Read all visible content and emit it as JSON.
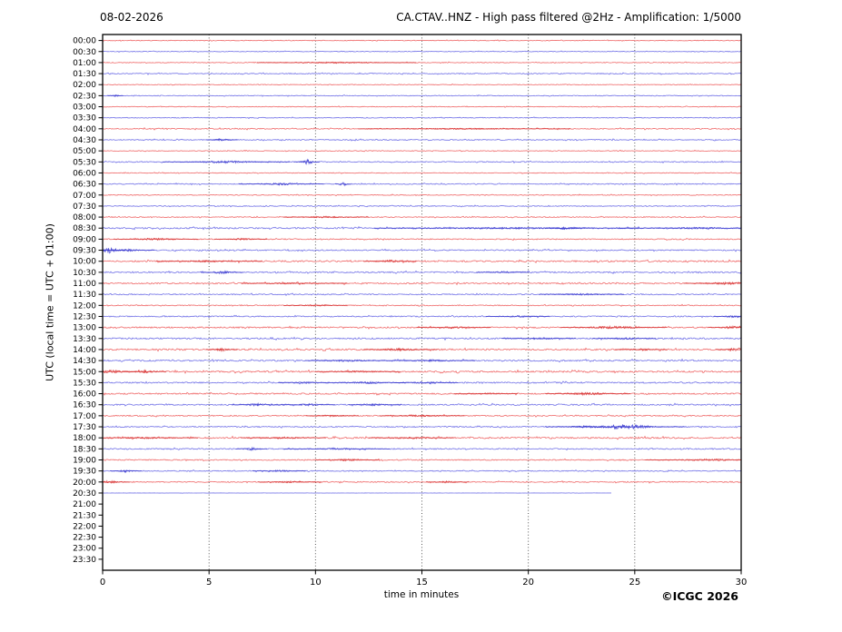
{
  "header": {
    "date": "08-02-2026",
    "title": "CA.CTAV..HNZ - High pass filtered @2Hz - Amplification: 1/5000"
  },
  "footer": {
    "copyright": "©ICGC 2026"
  },
  "axes": {
    "xlabel": "time in minutes",
    "ylabel": "UTC (local time = UTC + 01:00)",
    "x_ticks": [
      0,
      5,
      10,
      15,
      20,
      25,
      30
    ],
    "x_gridlines": [
      5,
      10,
      15,
      20,
      25
    ],
    "x_range": [
      0,
      30
    ]
  },
  "chart_data": {
    "type": "line",
    "subtype": "helicorder-dayplot",
    "title": "CA.CTAV..HNZ - High pass filtered @2Hz - Amplification: 1/5000",
    "xlabel": "time in minutes",
    "ylabel": "UTC (local time = UTC + 01:00)",
    "xlim": [
      0,
      30
    ],
    "grid": "vertical-dotted",
    "colors": {
      "red": "#f07070",
      "red_dark": "#d42a2a",
      "blue": "#7878e8",
      "blue_dark": "#3434cc",
      "grid": "#444444",
      "axis": "#000000"
    },
    "rows": [
      {
        "label": "00:00",
        "color": "red",
        "noise": 0.35,
        "extent": 30,
        "events": []
      },
      {
        "label": "00:30",
        "color": "blue",
        "noise": 0.35,
        "extent": 30,
        "events": []
      },
      {
        "label": "01:00",
        "color": "red",
        "noise": 0.4,
        "extent": 30,
        "events": [
          {
            "t": 11,
            "w": 1.5,
            "amp": 0.7
          }
        ]
      },
      {
        "label": "01:30",
        "color": "blue",
        "noise": 0.5,
        "extent": 30,
        "events": []
      },
      {
        "label": "02:00",
        "color": "red",
        "noise": 0.35,
        "extent": 30,
        "events": []
      },
      {
        "label": "02:30",
        "color": "blue",
        "noise": 0.4,
        "extent": 30,
        "events": [
          {
            "t": 0.6,
            "w": 0.15,
            "amp": 1.2
          }
        ]
      },
      {
        "label": "03:00",
        "color": "red",
        "noise": 0.35,
        "extent": 30,
        "events": []
      },
      {
        "label": "03:30",
        "color": "blue",
        "noise": 0.4,
        "extent": 30,
        "events": []
      },
      {
        "label": "04:00",
        "color": "red",
        "noise": 0.55,
        "extent": 30,
        "events": [
          {
            "t": 17,
            "w": 2,
            "amp": 0.6
          }
        ]
      },
      {
        "label": "04:30",
        "color": "blue",
        "noise": 0.5,
        "extent": 30,
        "events": [
          {
            "t": 5.6,
            "w": 0.3,
            "amp": 1.3
          }
        ]
      },
      {
        "label": "05:00",
        "color": "red",
        "noise": 0.35,
        "extent": 30,
        "events": []
      },
      {
        "label": "05:30",
        "color": "blue",
        "noise": 0.5,
        "extent": 30,
        "events": [
          {
            "t": 5.8,
            "w": 1.2,
            "amp": 1.1
          },
          {
            "t": 9.6,
            "w": 0.25,
            "amp": 2.8
          }
        ]
      },
      {
        "label": "06:00",
        "color": "red",
        "noise": 0.35,
        "extent": 30,
        "events": []
      },
      {
        "label": "06:30",
        "color": "blue",
        "noise": 0.5,
        "extent": 30,
        "events": [
          {
            "t": 8.4,
            "w": 0.8,
            "amp": 1.1
          },
          {
            "t": 11.3,
            "w": 0.15,
            "amp": 2.2
          }
        ]
      },
      {
        "label": "07:00",
        "color": "red",
        "noise": 0.4,
        "extent": 30,
        "events": []
      },
      {
        "label": "07:30",
        "color": "blue",
        "noise": 0.45,
        "extent": 30,
        "events": []
      },
      {
        "label": "08:00",
        "color": "red",
        "noise": 0.5,
        "extent": 30,
        "events": [
          {
            "t": 10.5,
            "w": 0.8,
            "amp": 0.9
          }
        ]
      },
      {
        "label": "08:30",
        "color": "blue",
        "noise": 0.75,
        "extent": 30,
        "events": [
          {
            "t": 19,
            "w": 2.5,
            "amp": 0.8
          },
          {
            "t": 21.8,
            "w": 0.4,
            "amp": 1.5
          },
          {
            "t": 28,
            "w": 1.5,
            "amp": 0.8
          }
        ]
      },
      {
        "label": "09:00",
        "color": "red",
        "noise": 0.55,
        "extent": 30,
        "events": [
          {
            "t": 2.5,
            "w": 0.8,
            "amp": 1.1
          },
          {
            "t": 6.5,
            "w": 0.5,
            "amp": 0.9
          }
        ]
      },
      {
        "label": "09:30",
        "color": "blue",
        "noise": 0.6,
        "extent": 30,
        "events": [
          {
            "t": 0.35,
            "w": 0.3,
            "amp": 3.2
          },
          {
            "t": 1.2,
            "w": 0.5,
            "amp": 1.1
          }
        ]
      },
      {
        "label": "10:00",
        "color": "red",
        "noise": 0.8,
        "extent": 30,
        "events": [
          {
            "t": 13.5,
            "w": 0.5,
            "amp": 1.4
          },
          {
            "t": 5,
            "w": 1,
            "amp": 0.7
          }
        ]
      },
      {
        "label": "10:30",
        "color": "blue",
        "noise": 0.7,
        "extent": 30,
        "events": [
          {
            "t": 5.6,
            "w": 0.4,
            "amp": 1.5
          },
          {
            "t": 18.8,
            "w": 0.5,
            "amp": 0.9
          }
        ]
      },
      {
        "label": "11:00",
        "color": "red",
        "noise": 0.7,
        "extent": 30,
        "events": [
          {
            "t": 29.3,
            "w": 0.8,
            "amp": 1.3
          },
          {
            "t": 9,
            "w": 1,
            "amp": 0.6
          }
        ]
      },
      {
        "label": "11:30",
        "color": "blue",
        "noise": 0.6,
        "extent": 30,
        "events": [
          {
            "t": 22.5,
            "w": 0.8,
            "amp": 0.9
          }
        ]
      },
      {
        "label": "12:00",
        "color": "red",
        "noise": 0.5,
        "extent": 30,
        "events": [
          {
            "t": 10,
            "w": 0.6,
            "amp": 0.8
          }
        ]
      },
      {
        "label": "12:30",
        "color": "blue",
        "noise": 0.6,
        "extent": 30,
        "events": [
          {
            "t": 29.7,
            "w": 0.4,
            "amp": 1.2
          },
          {
            "t": 19.5,
            "w": 0.6,
            "amp": 0.8
          }
        ]
      },
      {
        "label": "13:00",
        "color": "red",
        "noise": 0.75,
        "extent": 30,
        "events": [
          {
            "t": 24,
            "w": 1,
            "amp": 1.4
          },
          {
            "t": 29.7,
            "w": 0.5,
            "amp": 1.5
          },
          {
            "t": 16.5,
            "w": 0.7,
            "amp": 0.9
          }
        ]
      },
      {
        "label": "13:30",
        "color": "blue",
        "noise": 0.75,
        "extent": 30,
        "events": [
          {
            "t": 20.5,
            "w": 0.7,
            "amp": 0.9
          },
          {
            "t": 24.5,
            "w": 0.6,
            "amp": 0.9
          }
        ]
      },
      {
        "label": "14:00",
        "color": "red",
        "noise": 0.8,
        "extent": 30,
        "events": [
          {
            "t": 5.6,
            "w": 0.3,
            "amp": 1.5
          },
          {
            "t": 14,
            "w": 0.7,
            "amp": 1.2
          },
          {
            "t": 29.8,
            "w": 0.4,
            "amp": 1.8
          },
          {
            "t": 25.3,
            "w": 0.5,
            "amp": 1.0
          }
        ]
      },
      {
        "label": "14:30",
        "color": "blue",
        "noise": 0.75,
        "extent": 30,
        "events": [
          {
            "t": 11.5,
            "w": 0.8,
            "amp": 1.0
          },
          {
            "t": 15.5,
            "w": 0.8,
            "amp": 0.9
          }
        ]
      },
      {
        "label": "15:00",
        "color": "red",
        "noise": 0.8,
        "extent": 30,
        "events": [
          {
            "t": 0.4,
            "w": 0.5,
            "amp": 1.8
          },
          {
            "t": 2,
            "w": 0.4,
            "amp": 1.8
          },
          {
            "t": 12,
            "w": 0.8,
            "amp": 0.8
          }
        ]
      },
      {
        "label": "15:30",
        "color": "blue",
        "noise": 0.7,
        "extent": 30,
        "events": [
          {
            "t": 12.5,
            "w": 0.7,
            "amp": 1.0
          },
          {
            "t": 15.2,
            "w": 0.6,
            "amp": 1.0
          },
          {
            "t": 9.5,
            "w": 0.5,
            "amp": 0.8
          }
        ]
      },
      {
        "label": "16:00",
        "color": "red",
        "noise": 0.7,
        "extent": 30,
        "events": [
          {
            "t": 22.8,
            "w": 0.8,
            "amp": 1.4
          },
          {
            "t": 18,
            "w": 0.6,
            "amp": 0.8
          }
        ]
      },
      {
        "label": "16:30",
        "color": "blue",
        "noise": 0.7,
        "extent": 30,
        "events": [
          {
            "t": 7.3,
            "w": 0.5,
            "amp": 1.3
          },
          {
            "t": 9.7,
            "w": 0.5,
            "amp": 1.0
          },
          {
            "t": 12.8,
            "w": 0.5,
            "amp": 1.1
          }
        ]
      },
      {
        "label": "17:00",
        "color": "red",
        "noise": 0.6,
        "extent": 30,
        "events": [
          {
            "t": 15,
            "w": 0.8,
            "amp": 0.8
          },
          {
            "t": 10.8,
            "w": 0.5,
            "amp": 0.9
          }
        ]
      },
      {
        "label": "17:30",
        "color": "blue",
        "noise": 0.6,
        "extent": 30,
        "events": [
          {
            "t": 24.6,
            "w": 1.1,
            "amp": 2.6
          },
          {
            "t": 22.8,
            "w": 0.8,
            "amp": 1.1
          }
        ]
      },
      {
        "label": "18:00",
        "color": "red",
        "noise": 0.8,
        "extent": 30,
        "events": [
          {
            "t": 2,
            "w": 1,
            "amp": 0.8
          },
          {
            "t": 8.5,
            "w": 0.8,
            "amp": 0.9
          },
          {
            "t": 14.5,
            "w": 0.8,
            "amp": 0.8
          }
        ]
      },
      {
        "label": "18:30",
        "color": "blue",
        "noise": 0.6,
        "extent": 30,
        "events": [
          {
            "t": 7,
            "w": 0.3,
            "amp": 1.6
          },
          {
            "t": 11,
            "w": 1,
            "amp": 0.7
          }
        ]
      },
      {
        "label": "19:00",
        "color": "red",
        "noise": 0.55,
        "extent": 30,
        "events": [
          {
            "t": 11.5,
            "w": 0.6,
            "amp": 1.1
          },
          {
            "t": 28.5,
            "w": 1.2,
            "amp": 1.0
          }
        ]
      },
      {
        "label": "19:30",
        "color": "blue",
        "noise": 0.5,
        "extent": 30,
        "events": [
          {
            "t": 1.1,
            "w": 0.3,
            "amp": 1.3
          },
          {
            "t": 8.3,
            "w": 0.5,
            "amp": 0.8
          }
        ]
      },
      {
        "label": "20:00",
        "color": "red",
        "noise": 0.55,
        "extent": 30,
        "events": [
          {
            "t": 0.3,
            "w": 0.4,
            "amp": 1.4
          },
          {
            "t": 8.8,
            "w": 0.6,
            "amp": 0.8
          },
          {
            "t": 16.2,
            "w": 0.4,
            "amp": 0.9
          }
        ]
      },
      {
        "label": "20:30",
        "color": "blue",
        "noise": 0.1,
        "extent": 23.9,
        "events": []
      },
      {
        "label": "21:00",
        "color": "none",
        "noise": 0,
        "extent": 0,
        "events": []
      },
      {
        "label": "21:30",
        "color": "none",
        "noise": 0,
        "extent": 0,
        "events": []
      },
      {
        "label": "22:00",
        "color": "none",
        "noise": 0,
        "extent": 0,
        "events": []
      },
      {
        "label": "22:30",
        "color": "none",
        "noise": 0,
        "extent": 0,
        "events": []
      },
      {
        "label": "23:00",
        "color": "none",
        "noise": 0,
        "extent": 0,
        "events": []
      },
      {
        "label": "23:30",
        "color": "none",
        "noise": 0,
        "extent": 0,
        "events": []
      }
    ]
  }
}
